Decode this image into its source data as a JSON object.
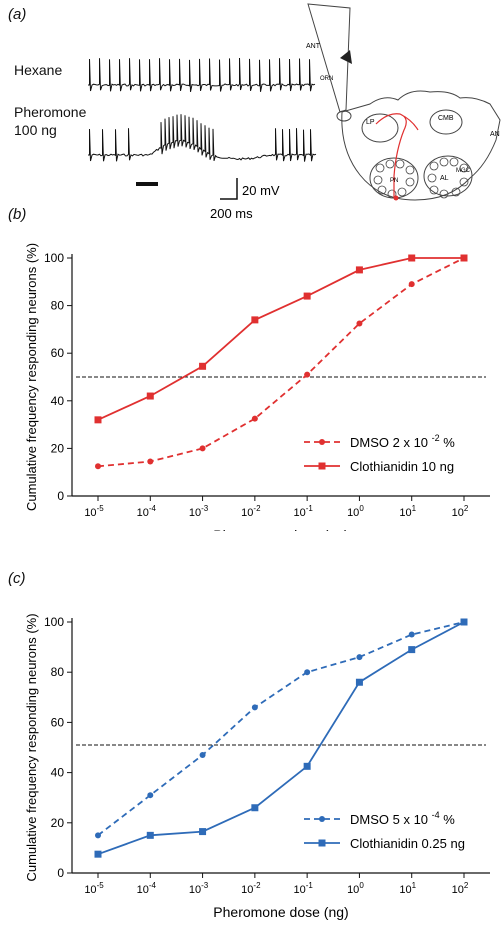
{
  "panel_a": {
    "letter": "(a)",
    "trace1_label": "Hexane",
    "trace2_label_line1": "Pheromone",
    "trace2_label_line2": "100 ng",
    "scale_voltage": "20 mV",
    "scale_time": "200 ms",
    "brain_labels": {
      "ant": "ANT",
      "orn": "ORN",
      "lp": "LP",
      "cmb": "CMB",
      "an": "AN",
      "pn": "PN",
      "al": "AL",
      "mgc": "MGC"
    }
  },
  "chart_data": [
    {
      "panel": "(b)",
      "type": "line",
      "categories": [
        "10",
        "10",
        "10",
        "10",
        "10",
        "10",
        "10",
        "10"
      ],
      "category_exponents": [
        "-5",
        "-4",
        "-3",
        "-2",
        "-1",
        "0",
        "1",
        "2"
      ],
      "x_log10": [
        -5,
        -4,
        -3,
        -2,
        -1,
        0,
        1,
        2
      ],
      "xlabel": "Pheromone dose (ng)",
      "ylabel": "Cumulative frequency responding neurons (%)",
      "ylim": [
        0,
        100
      ],
      "yticks": [
        "0",
        "20",
        "40",
        "60",
        "80",
        "100"
      ],
      "reference_line": 50,
      "legend_position": "bottom-right",
      "series": [
        {
          "name": "DMSO 2 x 10 ",
          "name_sup": "-2",
          "name_suffix": " %",
          "color": "#e03030",
          "dashed": true,
          "marker": "circle",
          "values": [
            12.5,
            14.5,
            20,
            32.5,
            51,
            72.5,
            89,
            100
          ]
        },
        {
          "name": "Clothianidin 10 ng",
          "color": "#e03030",
          "dashed": false,
          "marker": "square",
          "values": [
            32,
            42,
            54.5,
            74,
            84,
            95,
            100,
            100
          ]
        }
      ]
    },
    {
      "panel": "(c)",
      "type": "line",
      "categories": [
        "10",
        "10",
        "10",
        "10",
        "10",
        "10",
        "10",
        "10"
      ],
      "category_exponents": [
        "-5",
        "-4",
        "-3",
        "-2",
        "-1",
        "0",
        "1",
        "2"
      ],
      "x_log10": [
        -5,
        -4,
        -3,
        -2,
        -1,
        0,
        1,
        2
      ],
      "xlabel": "Pheromone dose (ng)",
      "ylabel": "Cumulative frequency responding neurons (%)",
      "ylim": [
        0,
        100
      ],
      "yticks": [
        "0",
        "20",
        "40",
        "60",
        "80",
        "100"
      ],
      "reference_line": 51,
      "legend_position": "bottom-right",
      "series": [
        {
          "name": "DMSO 5 x 10 ",
          "name_sup": "-4",
          "name_suffix": " %",
          "color": "#2e6bb8",
          "dashed": true,
          "marker": "circle",
          "values": [
            15,
            31,
            47,
            66,
            80,
            86,
            95,
            100
          ]
        },
        {
          "name": "Clothianidin 0.25 ng",
          "color": "#2e6bb8",
          "dashed": false,
          "marker": "square",
          "values": [
            7.5,
            15,
            16.5,
            26,
            42.5,
            76,
            89,
            100
          ]
        }
      ]
    }
  ],
  "panel_letters": {
    "b": "(b)",
    "c": "(c)"
  }
}
